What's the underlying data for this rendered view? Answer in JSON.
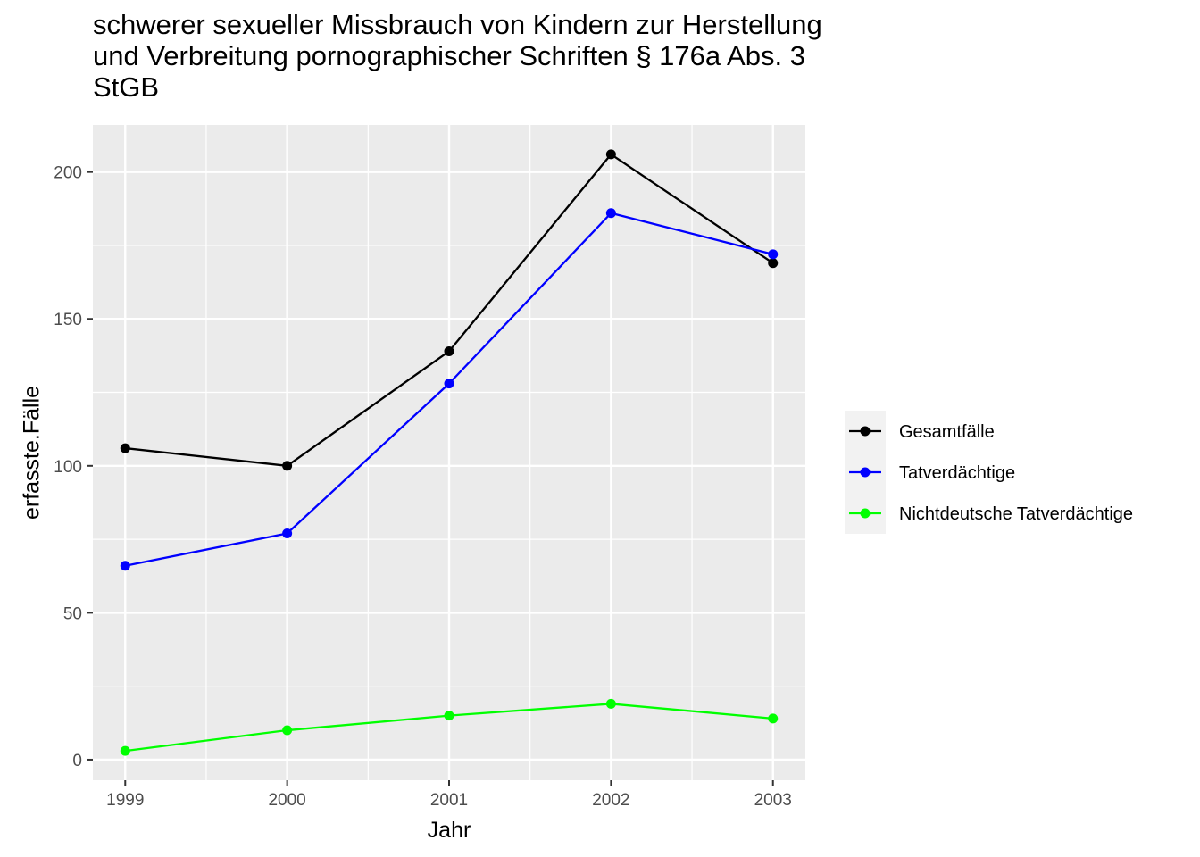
{
  "chart_data": {
    "type": "line",
    "title_lines": [
      "schwerer sexueller Missbrauch von Kindern zur Herstellung",
      "und Verbreitung pornographischer Schriften § 176a Abs. 3",
      "StGB"
    ],
    "xlabel": "Jahr",
    "ylabel": "erfasste.Fälle",
    "x": [
      1999,
      2000,
      2001,
      2002,
      2003
    ],
    "xlim": [
      1998.8,
      2003.2
    ],
    "ylim": [
      -7,
      216
    ],
    "yticks": [
      0,
      50,
      100,
      150,
      200
    ],
    "grid": true,
    "panel_background": "#ebebeb",
    "legend_position": "right",
    "series": [
      {
        "name": "Gesamtfälle",
        "color": "#000000",
        "values": [
          106,
          100,
          139,
          206,
          169
        ]
      },
      {
        "name": "Tatverdächtige",
        "color": "#0000ff",
        "values": [
          66,
          77,
          128,
          186,
          172
        ]
      },
      {
        "name": "Nichtdeutsche Tatverdächtige",
        "color": "#00ff00",
        "values": [
          3,
          10,
          15,
          19,
          14
        ]
      }
    ]
  }
}
